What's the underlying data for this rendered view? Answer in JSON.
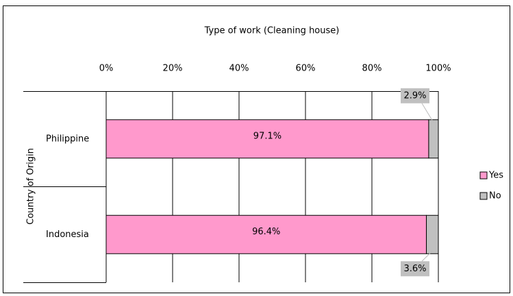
{
  "chart_data": {
    "type": "stacked_barh",
    "title": "Type of work (Cleaning house)",
    "y_axis_label": "Country of Origin",
    "categories": [
      "Philippine",
      "Indonesia"
    ],
    "series": [
      {
        "name": "Yes",
        "color": "#ff99cc",
        "values": [
          97.1,
          96.4
        ],
        "value_labels": [
          "97.1%",
          "96.4%"
        ]
      },
      {
        "name": "No",
        "color": "#c0c0c0",
        "values": [
          2.9,
          3.6
        ],
        "value_labels": [
          "2.9%",
          "3.6%"
        ]
      }
    ],
    "xlim": [
      0,
      100
    ],
    "xticks": [
      {
        "value": 0,
        "label": "0%"
      },
      {
        "value": 20,
        "label": "20%"
      },
      {
        "value": 40,
        "label": "40%"
      },
      {
        "value": 60,
        "label": "60%"
      },
      {
        "value": 80,
        "label": "80%"
      },
      {
        "value": 100,
        "label": "100%"
      }
    ],
    "grid": true,
    "legend": "right"
  }
}
